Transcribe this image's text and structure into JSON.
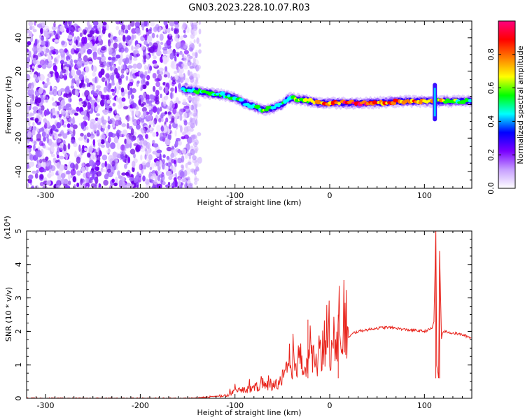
{
  "title": "GN03.2023.228.10.07.R03",
  "chart_data": [
    {
      "type": "heatmap",
      "xlabel": "Height of straight line (km)",
      "ylabel": "Frequency (Hz)",
      "xlim": [
        -320,
        150
      ],
      "ylim": [
        -50,
        50
      ],
      "xticks": [
        -300,
        -200,
        -100,
        0,
        100
      ],
      "yticks": [
        -40,
        -20,
        0,
        20,
        40
      ],
      "colorbar": {
        "label": "Normalized spectral amplitude",
        "range": [
          0,
          1
        ],
        "ticks": [
          "0.0",
          "0.2",
          "0.4",
          "0.6",
          "0.8"
        ],
        "colors": [
          "#ffffff",
          "#c7a0ff",
          "#7a00ff",
          "#0000ff",
          "#00ffff",
          "#00ff00",
          "#ffff00",
          "#ff8000",
          "#ff0000",
          "#ff0080"
        ]
      },
      "noise_region_x": [
        -320,
        -137
      ],
      "signal_track": [
        {
          "x": -155,
          "y": 9,
          "amp": 0.5
        },
        {
          "x": -140,
          "y": 8,
          "amp": 0.55
        },
        {
          "x": -130,
          "y": 7,
          "amp": 0.6
        },
        {
          "x": -115,
          "y": 6,
          "amp": 0.6
        },
        {
          "x": -100,
          "y": 4,
          "amp": 0.55
        },
        {
          "x": -90,
          "y": 1,
          "amp": 0.5
        },
        {
          "x": -80,
          "y": -1,
          "amp": 0.55
        },
        {
          "x": -70,
          "y": -3,
          "amp": 0.6
        },
        {
          "x": -60,
          "y": -2,
          "amp": 0.55
        },
        {
          "x": -50,
          "y": 0,
          "amp": 0.55
        },
        {
          "x": -45,
          "y": 3,
          "amp": 0.5
        },
        {
          "x": -40,
          "y": 4,
          "amp": 0.6
        },
        {
          "x": -30,
          "y": 3,
          "amp": 0.6
        },
        {
          "x": -20,
          "y": 2,
          "amp": 0.8
        },
        {
          "x": -10,
          "y": 1,
          "amp": 0.85
        },
        {
          "x": 0,
          "y": 1,
          "amp": 0.9
        },
        {
          "x": 20,
          "y": 1,
          "amp": 0.95
        },
        {
          "x": 40,
          "y": 1,
          "amp": 0.95
        },
        {
          "x": 60,
          "y": 1.5,
          "amp": 0.9
        },
        {
          "x": 80,
          "y": 2,
          "amp": 0.9
        },
        {
          "x": 100,
          "y": 2,
          "amp": 0.85
        },
        {
          "x": 110,
          "y": 2,
          "amp": 0.7
        },
        {
          "x": 120,
          "y": 2,
          "amp": 0.7
        },
        {
          "x": 135,
          "y": 2,
          "amp": 0.65
        },
        {
          "x": 150,
          "y": 2,
          "amp": 0.6
        }
      ],
      "spike": {
        "x": 111,
        "y_range": [
          -10,
          13
        ]
      }
    },
    {
      "type": "line",
      "xlabel": "Height of straight line (km)",
      "ylabel": "SNR (10 * v/v)",
      "y_multiplier": "(x10⁴)",
      "xlim": [
        -320,
        150
      ],
      "ylim": [
        0,
        5
      ],
      "xticks": [
        -300,
        -200,
        -100,
        0,
        100
      ],
      "yticks": [
        0,
        1,
        2,
        3,
        4,
        5
      ],
      "color": "#e8231b",
      "series": [
        {
          "x": [
            -320,
            -150,
            -130,
            -110,
            -100,
            -90,
            -80,
            -70,
            -60,
            -50,
            -45,
            -40,
            -35,
            -30,
            -25,
            -20,
            -15,
            -10,
            -5,
            0,
            5,
            10,
            15,
            20,
            25,
            30,
            40,
            50,
            60,
            70,
            80,
            90,
            100,
            105,
            108,
            110,
            112,
            113,
            115,
            116,
            118,
            120,
            130,
            140,
            150
          ],
          "values": [
            0.0,
            0.0,
            0.03,
            0.08,
            0.2,
            0.25,
            0.3,
            0.4,
            0.35,
            0.6,
            0.8,
            1.0,
            1.1,
            1.2,
            1.0,
            1.3,
            1.0,
            1.3,
            1.5,
            1.4,
            1.8,
            1.7,
            1.8,
            1.8,
            1.95,
            2.0,
            2.05,
            2.1,
            2.12,
            2.1,
            2.05,
            2.03,
            2.0,
            2.05,
            2.1,
            2.3,
            5.0,
            1.0,
            0.6,
            4.4,
            1.8,
            2.0,
            1.95,
            1.9,
            1.8
          ]
        }
      ],
      "spikes": [
        {
          "x": -23,
          "y": 2.35
        },
        {
          "x": 9,
          "y": 2.5
        },
        {
          "x": 112,
          "y": 5.0
        },
        {
          "x": 116,
          "y": 4.4
        }
      ]
    }
  ]
}
